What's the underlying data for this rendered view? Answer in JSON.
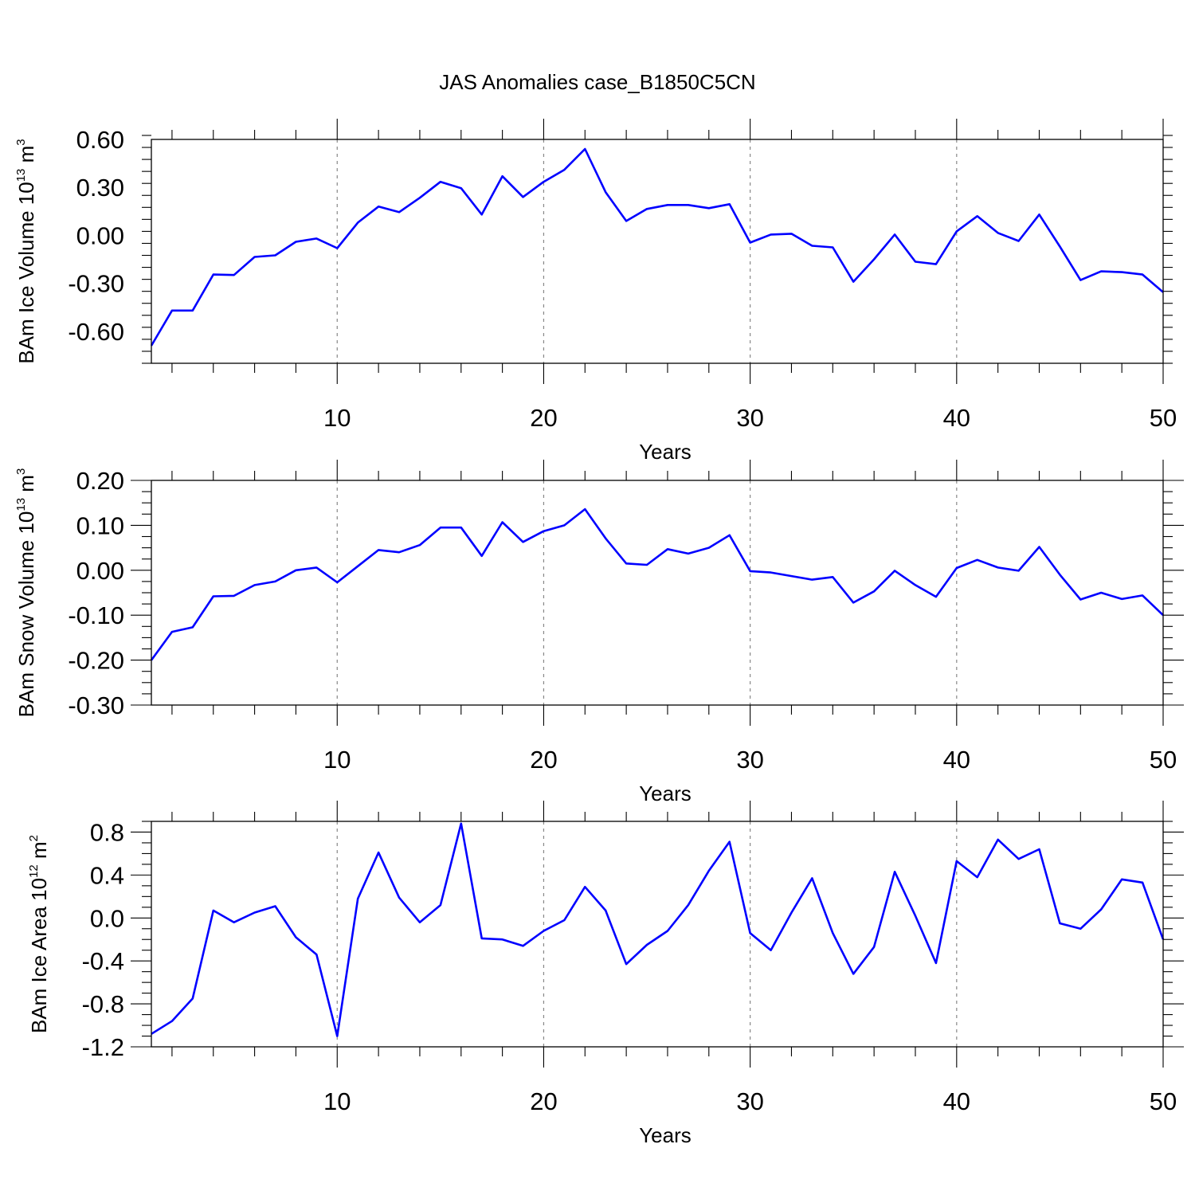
{
  "chart_data": {
    "title": "JAS Anomalies case_B1850C5CN",
    "panels": [
      {
        "type": "line",
        "ylabel": "BAm Ice Volume",
        "ylabel_unit": "10",
        "ylabel_exp": "13",
        "ylabel_tail": " m",
        "ylabel_tail_exp": "3",
        "xlabel": "Years",
        "xlim": [
          1,
          50
        ],
        "ylim": [
          -0.8,
          0.6
        ],
        "xticks": [
          10,
          20,
          30,
          40,
          50
        ],
        "xtick_labels": [
          "10",
          "20",
          "30",
          "40",
          "50"
        ],
        "yticks": [
          0.6,
          0.3,
          0.0,
          -0.3,
          -0.6
        ],
        "ytick_labels": [
          "0.60",
          "0.30",
          "0.00",
          "-0.30",
          "-0.60"
        ],
        "line_color": "#0000ff",
        "x": [
          1,
          2,
          3,
          4,
          5,
          6,
          7,
          8,
          9,
          10,
          11,
          12,
          13,
          14,
          15,
          16,
          17,
          18,
          19,
          20,
          21,
          22,
          23,
          24,
          25,
          26,
          27,
          28,
          29,
          30,
          31,
          32,
          33,
          34,
          35,
          36,
          37,
          38,
          39,
          40,
          41,
          42,
          43,
          44,
          45,
          46,
          47,
          48,
          49,
          50
        ],
        "values": [
          -0.69,
          -0.47,
          -0.47,
          -0.245,
          -0.248,
          -0.135,
          -0.125,
          -0.04,
          -0.02,
          -0.08,
          0.08,
          0.18,
          0.145,
          0.235,
          0.335,
          0.295,
          0.13,
          0.37,
          0.24,
          0.335,
          0.41,
          0.54,
          0.27,
          0.09,
          0.165,
          0.19,
          0.19,
          0.17,
          0.195,
          -0.045,
          0.005,
          0.01,
          -0.065,
          -0.075,
          -0.29,
          -0.15,
          0.005,
          -0.165,
          -0.18,
          0.025,
          0.12,
          0.015,
          -0.035,
          0.13,
          -0.07,
          -0.28,
          -0.225,
          -0.23,
          -0.245,
          -0.355
        ]
      },
      {
        "type": "line",
        "ylabel": "BAm Snow Volume",
        "ylabel_unit": "10",
        "ylabel_exp": "13",
        "ylabel_tail": " m",
        "ylabel_tail_exp": "3",
        "xlabel": "Years",
        "xlim": [
          1,
          50
        ],
        "ylim": [
          -0.3,
          0.2
        ],
        "xticks": [
          10,
          20,
          30,
          40,
          50
        ],
        "xtick_labels": [
          "10",
          "20",
          "30",
          "40",
          "50"
        ],
        "yticks": [
          0.2,
          0.1,
          0.0,
          -0.1,
          -0.2,
          -0.3
        ],
        "ytick_labels": [
          "0.20",
          "0.10",
          "0.00",
          "-0.10",
          "-0.20",
          "-0.30"
        ],
        "line_color": "#0000ff",
        "x": [
          1,
          2,
          3,
          4,
          5,
          6,
          7,
          8,
          9,
          10,
          11,
          12,
          13,
          14,
          15,
          16,
          17,
          18,
          19,
          20,
          21,
          22,
          23,
          24,
          25,
          26,
          27,
          28,
          29,
          30,
          31,
          32,
          33,
          34,
          35,
          36,
          37,
          38,
          39,
          40,
          41,
          42,
          43,
          44,
          45,
          46,
          47,
          48,
          49,
          50
        ],
        "values": [
          -0.2,
          -0.137,
          -0.127,
          -0.058,
          -0.057,
          -0.033,
          -0.025,
          0.0,
          0.006,
          -0.027,
          0.009,
          0.045,
          0.04,
          0.056,
          0.095,
          0.095,
          0.032,
          0.107,
          0.063,
          0.087,
          0.1,
          0.136,
          0.071,
          0.015,
          0.012,
          0.047,
          0.037,
          0.05,
          0.078,
          -0.002,
          -0.005,
          -0.013,
          -0.021,
          -0.015,
          -0.072,
          -0.047,
          -0.001,
          -0.033,
          -0.059,
          0.005,
          0.023,
          0.006,
          -0.001,
          0.052,
          -0.01,
          -0.065,
          -0.05,
          -0.064,
          -0.056,
          -0.1
        ]
      },
      {
        "type": "line",
        "ylabel": "BAm Ice Area",
        "ylabel_unit": "10",
        "ylabel_exp": "12",
        "ylabel_tail": " m",
        "ylabel_tail_exp": "2",
        "xlabel": "Years",
        "xlim": [
          1,
          50
        ],
        "ylim": [
          -1.2,
          0.9
        ],
        "xticks": [
          10,
          20,
          30,
          40,
          50
        ],
        "xtick_labels": [
          "10",
          "20",
          "30",
          "40",
          "50"
        ],
        "yticks": [
          0.8,
          0.4,
          0.0,
          -0.4,
          -0.8,
          -1.2
        ],
        "ytick_labels": [
          "0.8",
          "0.4",
          "0.0",
          "-0.4",
          "-0.8",
          "-1.2"
        ],
        "line_color": "#0000ff",
        "x": [
          1,
          2,
          3,
          4,
          5,
          6,
          7,
          8,
          9,
          10,
          11,
          12,
          13,
          14,
          15,
          16,
          17,
          18,
          19,
          20,
          21,
          22,
          23,
          24,
          25,
          26,
          27,
          28,
          29,
          30,
          31,
          32,
          33,
          34,
          35,
          36,
          37,
          38,
          39,
          40,
          41,
          42,
          43,
          44,
          45,
          46,
          47,
          48,
          49,
          50
        ],
        "values": [
          -1.08,
          -0.96,
          -0.75,
          0.07,
          -0.04,
          0.05,
          0.11,
          -0.18,
          -0.34,
          -1.1,
          0.18,
          0.61,
          0.19,
          -0.04,
          0.12,
          0.88,
          -0.19,
          -0.2,
          -0.26,
          -0.12,
          -0.02,
          0.29,
          0.07,
          -0.43,
          -0.25,
          -0.12,
          0.12,
          0.44,
          0.71,
          -0.14,
          -0.3,
          0.05,
          0.37,
          -0.14,
          -0.52,
          -0.27,
          0.43,
          0.02,
          -0.42,
          0.53,
          0.38,
          0.73,
          0.55,
          0.64,
          -0.05,
          -0.1,
          0.08,
          0.36,
          0.33,
          -0.2
        ]
      }
    ]
  }
}
